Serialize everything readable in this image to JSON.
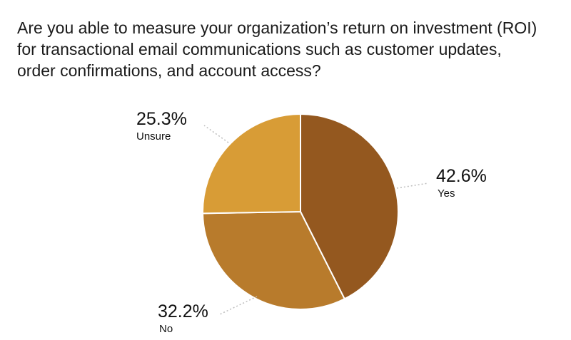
{
  "question": {
    "lines": [
      "Are you able to measure your organization’s return on investment (ROI)",
      "for transactional email communications such as customer updates,",
      "order confirmations, and account access?"
    ]
  },
  "chart_data": {
    "type": "pie",
    "title": "Are you able to measure your organization’s return on investment (ROI) for transactional email communications such as customer updates, order confirmations, and account access?",
    "slices": [
      {
        "label": "Yes",
        "value": 42.6,
        "display": "42.6%",
        "color": "#94581f"
      },
      {
        "label": "No",
        "value": 32.2,
        "display": "32.2%",
        "color": "#b87b2c"
      },
      {
        "label": "Unsure",
        "value": 25.3,
        "display": "25.3%",
        "color": "#d89c36"
      }
    ],
    "start": "12 o'clock",
    "direction": "clockwise"
  }
}
